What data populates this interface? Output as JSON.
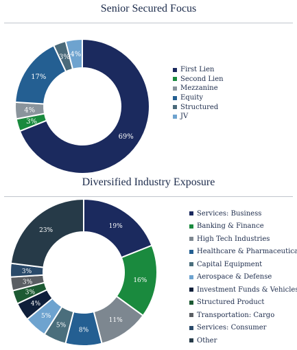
{
  "chart_data": [
    {
      "type": "pie",
      "title": "Senior Secured Focus",
      "legend_position": "right",
      "categories": [
        "First Lien",
        "Second Lien",
        "Mezzanine",
        "Equity",
        "Structured",
        "JV"
      ],
      "values": [
        69,
        3,
        4,
        17,
        3,
        4
      ],
      "labels": [
        "69%",
        "3%",
        "4%",
        "17%",
        "3%",
        "4%"
      ],
      "colors": [
        "#1b2a5e",
        "#1a8a3e",
        "#8a949c",
        "#245f92",
        "#4a6a7a",
        "#6ea3cf"
      ]
    },
    {
      "type": "pie",
      "title": "Diversified Industry Exposure",
      "legend_position": "right",
      "categories": [
        "Services: Business",
        "Banking & Finance",
        "High Tech Industries",
        "Healthcare & Pharmaceuticals",
        "Capital Equipment",
        "Aerospace & Defense",
        "Investment Funds & Vehicles",
        "Structured Product",
        "Transportation: Cargo",
        "Services: Consumer",
        "Other"
      ],
      "values": [
        19,
        16,
        11,
        8,
        5,
        5,
        4,
        3,
        3,
        3,
        23
      ],
      "labels": [
        "19%",
        "16%",
        "11%",
        "8%",
        "5%",
        "5%",
        "4%",
        "3%",
        "3%",
        "3%",
        "23%"
      ],
      "colors": [
        "#1b2a5e",
        "#1a8a3e",
        "#7d8790",
        "#245f92",
        "#4a6e7c",
        "#6ea3cf",
        "#0f1f3a",
        "#1d5a33",
        "#5a5e63",
        "#2a4a6a",
        "#263a48"
      ]
    }
  ]
}
